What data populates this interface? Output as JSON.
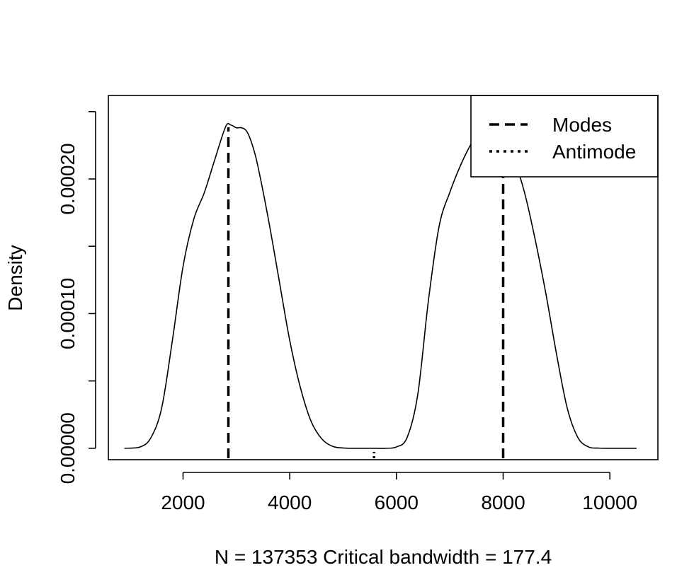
{
  "chart_data": {
    "type": "line",
    "title": "",
    "xlabel": "N =  137353  Critical bandwidth =  177.4",
    "ylabel": "Density",
    "xlim": [
      600,
      10900
    ],
    "ylim": [
      -8.5e-06,
      0.000262
    ],
    "x_ticks": [
      2000,
      4000,
      6000,
      8000,
      10000
    ],
    "x_tick_labels": [
      "2000",
      "4000",
      "6000",
      "8000",
      "10000"
    ],
    "y_ticks": [
      0,
      5e-05,
      0.0001,
      0.00015,
      0.0002,
      0.00025
    ],
    "y_tick_labels": [
      "0.00000",
      "",
      "0.00010",
      "",
      "0.00020",
      ""
    ],
    "grid": false,
    "legend": {
      "position": "top-right",
      "entries": [
        {
          "label": "Modes",
          "line_style": "dashed"
        },
        {
          "label": "Antimode",
          "line_style": "dotted"
        }
      ]
    },
    "series": [
      {
        "line_style": "solid",
        "x": [
          900,
          1200,
          1400,
          1600,
          1800,
          2000,
          2200,
          2400,
          2600,
          2800,
          2900,
          3000,
          3100,
          3200,
          3300,
          3400,
          3600,
          3800,
          4000,
          4200,
          4400,
          4600,
          4800,
          5000,
          5200,
          5400,
          5600,
          5800,
          6000,
          6200,
          6400,
          6600,
          6800,
          7000,
          7200,
          7400,
          7600,
          7800,
          8000,
          8200,
          8400,
          8600,
          8800,
          9000,
          9200,
          9400,
          9600,
          9800,
          10000,
          10200,
          10500
        ],
        "y": [
          0.0,
          1e-06,
          8e-06,
          3e-05,
          8e-05,
          0.000135,
          0.00017,
          0.00019,
          0.000215,
          0.000239,
          0.00024,
          0.000238,
          0.000238,
          0.000235,
          0.000225,
          0.00021,
          0.00017,
          0.000125,
          8e-05,
          4.5e-05,
          2e-05,
          7e-06,
          1.5e-06,
          2e-07,
          0.0,
          0.0,
          0.0,
          0.0,
          1e-06,
          8e-06,
          4e-05,
          0.00011,
          0.000165,
          0.00019,
          0.00021,
          0.000226,
          0.000237,
          0.00024,
          0.000232,
          0.000215,
          0.00019,
          0.000155,
          0.000115,
          7e-05,
          3e-05,
          8e-06,
          1e-06,
          1e-07,
          0.0,
          0.0,
          0.0
        ]
      }
    ],
    "modes": [
      2850,
      8000
    ],
    "antimode": 5580
  }
}
